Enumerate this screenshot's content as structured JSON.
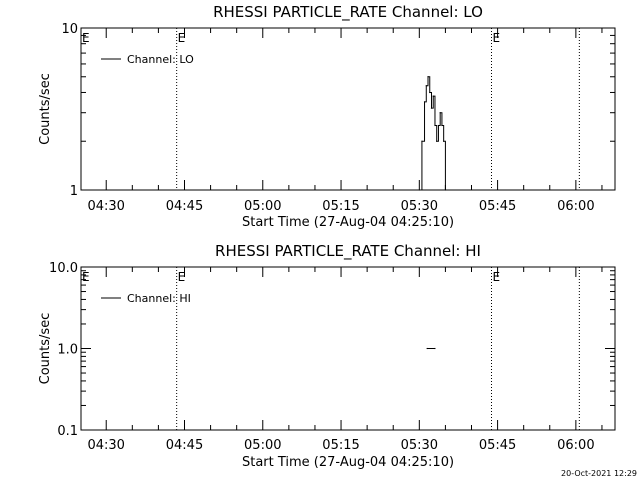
{
  "footer": {
    "timestamp": "20-Oct-2021 12:29"
  },
  "chart_data": [
    {
      "type": "line",
      "title": "RHESSI PARTICLE_RATE Channel: LO",
      "xlabel": "Start Time (27-Aug-04 04:25:10)",
      "ylabel": "Counts/sec",
      "yscale": "log",
      "xlim": [
        "04:25:10",
        "06:07:30"
      ],
      "ylim": [
        1,
        10
      ],
      "x_ticks": [
        "04:30",
        "04:45",
        "05:00",
        "05:15",
        "05:30",
        "05:45",
        "06:00"
      ],
      "y_ticks": [
        "1",
        "10"
      ],
      "legend": {
        "label": "Channel: LO",
        "position": "top-left"
      },
      "markers": [
        {
          "time": "04:43:30",
          "label": "E"
        },
        {
          "time": "05:43:50",
          "label": "E"
        },
        {
          "time": "06:00:40",
          "label": ""
        }
      ],
      "series": [
        {
          "name": "Channel: LO",
          "style": "step",
          "points": [
            [
              "05:30:00",
              1.0
            ],
            [
              "05:30:30",
              2.0
            ],
            [
              "05:31:00",
              3.5
            ],
            [
              "05:31:20",
              4.4
            ],
            [
              "05:31:40",
              5.0
            ],
            [
              "05:32:00",
              4.0
            ],
            [
              "05:32:20",
              3.2
            ],
            [
              "05:32:40",
              3.8
            ],
            [
              "05:33:00",
              2.5
            ],
            [
              "05:33:20",
              2.0
            ],
            [
              "05:33:40",
              2.5
            ],
            [
              "05:34:00",
              3.0
            ],
            [
              "05:34:20",
              2.5
            ],
            [
              "05:34:40",
              2.0
            ],
            [
              "05:35:00",
              1.0
            ]
          ]
        }
      ]
    },
    {
      "type": "line",
      "title": "RHESSI PARTICLE_RATE Channel: HI",
      "xlabel": "Start Time (27-Aug-04 04:25:10)",
      "ylabel": "Counts/sec",
      "yscale": "log",
      "xlim": [
        "04:25:10",
        "06:07:30"
      ],
      "ylim": [
        0.1,
        10
      ],
      "x_ticks": [
        "04:30",
        "04:45",
        "05:00",
        "05:15",
        "05:30",
        "05:45",
        "06:00"
      ],
      "y_ticks": [
        "0.1",
        "1.0",
        "10.0"
      ],
      "legend": {
        "label": "Channel: HI",
        "position": "top-left"
      },
      "markers": [
        {
          "time": "04:43:30",
          "label": "E"
        },
        {
          "time": "05:43:50",
          "label": "E"
        },
        {
          "time": "06:00:40",
          "label": ""
        }
      ],
      "series": [
        {
          "name": "Channel: HI",
          "style": "step",
          "points": [
            [
              "05:31:30",
              1.0
            ],
            [
              "05:33:00",
              1.0
            ]
          ]
        }
      ]
    }
  ]
}
